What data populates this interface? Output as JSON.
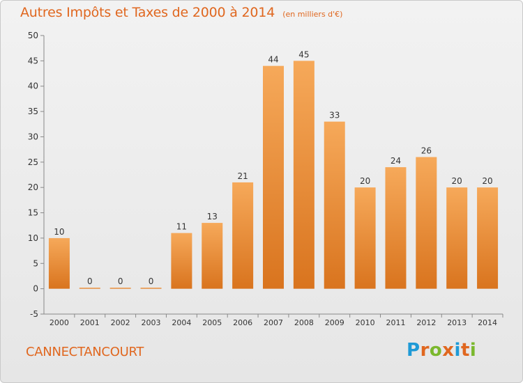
{
  "header": {
    "title": "Autres Impôts et Taxes de 2000 à 2014",
    "subtitle": "(en milliers d'€)"
  },
  "footer": {
    "commune": "CANNECTANCOURT",
    "logo": {
      "text": "Proxiti",
      "colors": [
        "#1f9ad6",
        "#e0671f",
        "#7bb82d",
        "#e0671f",
        "#1f9ad6",
        "#e0671f",
        "#7bb82d"
      ]
    }
  },
  "chart_data": {
    "type": "bar",
    "title": "Autres Impôts et Taxes de 2000 à 2014",
    "xlabel": "",
    "ylabel": "",
    "categories": [
      "2000",
      "2001",
      "2002",
      "2003",
      "2004",
      "2005",
      "2006",
      "2007",
      "2008",
      "2009",
      "2010",
      "2011",
      "2012",
      "2013",
      "2014"
    ],
    "values": [
      10,
      0,
      0,
      0,
      11,
      13,
      21,
      44,
      45,
      33,
      20,
      24,
      26,
      20,
      20
    ],
    "ylim": [
      -5,
      50
    ],
    "yticks": [
      -5,
      0,
      5,
      10,
      15,
      20,
      25,
      30,
      35,
      40,
      45,
      50
    ],
    "grid": false,
    "colors": {
      "bar_top": "#f6a95a",
      "bar_bottom": "#d9741e",
      "text": "#333333",
      "axis": "#888888"
    }
  }
}
